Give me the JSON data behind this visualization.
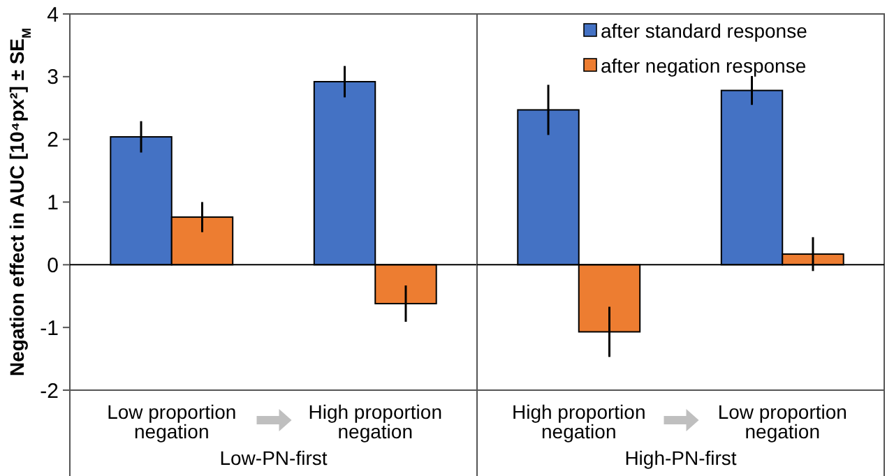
{
  "chart_data": [
    {
      "type": "bar",
      "ylabel": "Negation effect in AUC [10⁴px²] ± SE$_{M}$",
      "categories": [
        "Low proportion negation",
        "High proportion negation"
      ],
      "series": [
        {
          "color": "#4472c4",
          "values": [
            2.04,
            2.92
          ],
          "errors": [
            0.25,
            0.25
          ]
        },
        {
          "color": "#ed7d31",
          "values": [
            0.76,
            -0.62
          ],
          "errors": [
            0.24,
            0.29
          ]
        }
      ],
      "ylim": [
        -2,
        4
      ],
      "yticks": [
        -2,
        -1,
        0,
        1,
        2,
        3,
        4
      ],
      "annotations": [
        "Low-PN-first"
      ]
    },
    {
      "type": "bar",
      "categories": [
        "High proportion negation",
        "Low proportion negation"
      ],
      "series": [
        {
          "name": "after standard response",
          "color": "#4472c4",
          "values": [
            2.47,
            2.78
          ],
          "errors": [
            0.4,
            0.23
          ]
        },
        {
          "name": "after negation response",
          "color": "#ed7d31",
          "values": [
            -1.07,
            0.17
          ],
          "errors": [
            0.4,
            0.27
          ]
        }
      ],
      "ylim": [
        -2,
        4
      ],
      "yticks": [
        -2,
        -1,
        0,
        1,
        2,
        3,
        4
      ],
      "tick_labels": "x",
      "legend": "top right",
      "annotations": [
        "High-PN-first"
      ]
    }
  ]
}
